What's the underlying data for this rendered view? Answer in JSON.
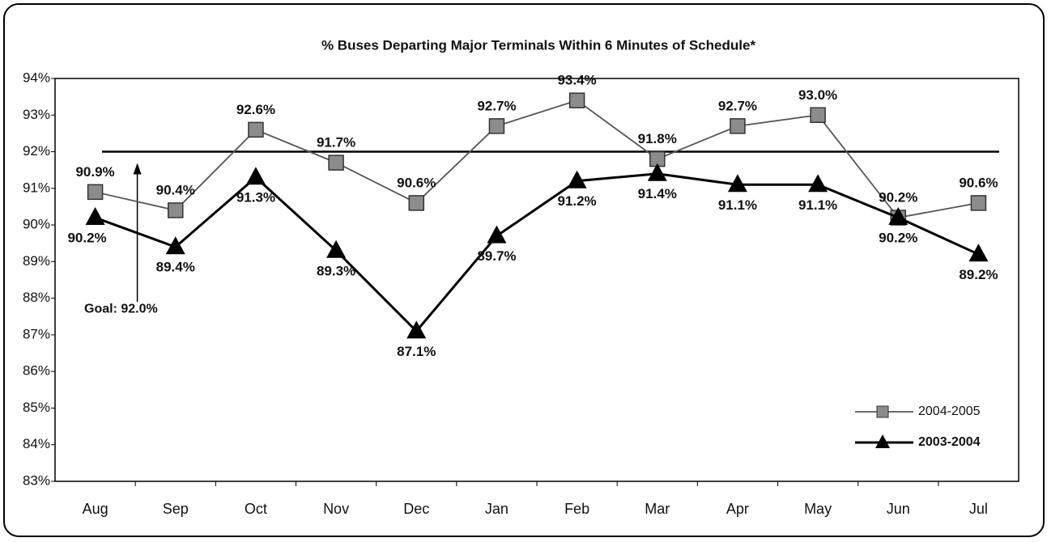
{
  "chart_data": {
    "type": "line",
    "title": "% Buses Departing Major Terminals Within 6 Minutes of Schedule*",
    "categories": [
      "Aug",
      "Sep",
      "Oct",
      "Nov",
      "Dec",
      "Jan",
      "Feb",
      "Mar",
      "Apr",
      "May",
      "Jun",
      "Jul"
    ],
    "series": [
      {
        "name": "2004-2005",
        "color": "#8c8c8c",
        "marker": "square",
        "values": [
          90.9,
          90.4,
          92.6,
          91.7,
          90.6,
          92.7,
          93.4,
          91.8,
          92.7,
          93.0,
          90.2,
          90.6
        ],
        "value_labels": [
          "90.9%",
          "90.4%",
          "92.6%",
          "91.7%",
          "90.6%",
          "92.7%",
          "93.4%",
          "91.8%",
          "92.7%",
          "93.0%",
          "90.2%",
          "90.6%"
        ]
      },
      {
        "name": "2003-2004",
        "color": "#000000",
        "marker": "triangle",
        "values": [
          90.2,
          89.4,
          91.3,
          89.3,
          87.1,
          89.7,
          91.2,
          91.4,
          91.1,
          91.1,
          90.2,
          89.2
        ],
        "value_labels": [
          "90.2%",
          "89.4%",
          "91.3%",
          "89.3%",
          "87.1%",
          "89.7%",
          "91.2%",
          "91.4%",
          "91.1%",
          "91.1%",
          "90.2%",
          "89.2%"
        ]
      }
    ],
    "goal": {
      "value": 92,
      "label": "Goal:  92.0%"
    },
    "ylim": [
      83,
      94
    ],
    "yticks": [
      {
        "value": 83,
        "label": "83%"
      },
      {
        "value": 84,
        "label": "84%"
      },
      {
        "value": 85,
        "label": "85%"
      },
      {
        "value": 86,
        "label": "86%"
      },
      {
        "value": 87,
        "label": "87%"
      },
      {
        "value": 88,
        "label": "88%"
      },
      {
        "value": 89,
        "label": "89%"
      },
      {
        "value": 90,
        "label": "90%"
      },
      {
        "value": 91,
        "label": "91%"
      },
      {
        "value": 92,
        "label": "92%"
      },
      {
        "value": 93,
        "label": "93%"
      },
      {
        "value": 94,
        "label": "94%"
      }
    ],
    "grid": false,
    "legend": "lower right"
  }
}
